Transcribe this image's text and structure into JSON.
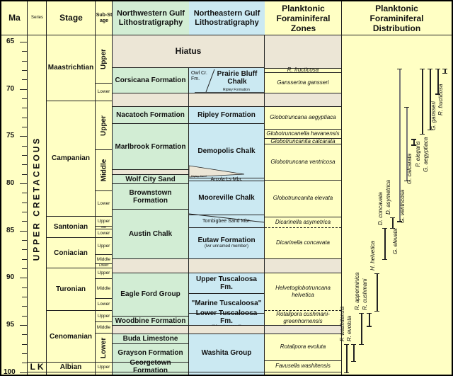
{
  "headers": {
    "ma": "Ma",
    "series": "Series",
    "stage": "Stage",
    "substage": "Sub-Stage",
    "nw": "Northwestern Gulf Lithostratigraphy",
    "ne": "Northeastern Gulf Lithostratigraphy",
    "zones": "Planktonic Foraminiferal Zones",
    "distribution": "Planktonic Foraminiferal Distribution"
  },
  "colors": {
    "yellow": "#ffffc4",
    "green": "#d2edd4",
    "blue": "#cbe9f2",
    "hiatus": "#ece6d6"
  },
  "ma_labels": [
    65,
    70,
    75,
    80,
    85,
    90,
    95,
    100
  ],
  "series": [
    {
      "label": "UPPER CRETACEOUS",
      "top": 65,
      "bottom": 99
    },
    {
      "label": "L K",
      "top": 99,
      "bottom": 100
    }
  ],
  "stages": [
    {
      "label": "Maastrichtian",
      "top": 65,
      "bottom": 71.3
    },
    {
      "label": "Campanian",
      "top": 71.3,
      "bottom": 83.5
    },
    {
      "label": "Santonian",
      "top": 83.5,
      "bottom": 85.8
    },
    {
      "label": "Coniacian",
      "top": 85.8,
      "bottom": 89
    },
    {
      "label": "Turonian",
      "top": 89,
      "bottom": 93.5
    },
    {
      "label": "Cenomanian",
      "top": 93.5,
      "bottom": 99
    },
    {
      "label": "Albian",
      "top": 99,
      "bottom": 100
    }
  ],
  "substages": [
    {
      "label": "Upper",
      "top": 65,
      "bottom": 69.4
    },
    {
      "label": "Lower",
      "top": 69.4,
      "bottom": 71.3
    },
    {
      "label": "Upper",
      "top": 71.3,
      "bottom": 76.5
    },
    {
      "label": "Middle",
      "top": 76.5,
      "bottom": 80.8
    },
    {
      "label": "Lower",
      "top": 80.8,
      "bottom": 83.5
    },
    {
      "label": "Upper",
      "top": 83.5,
      "bottom": 84.55
    },
    {
      "label": "Mid",
      "top": 84.55,
      "bottom": 84.9
    },
    {
      "label": "Lower",
      "top": 84.9,
      "bottom": 85.8
    },
    {
      "label": "Upper",
      "top": 85.8,
      "bottom": 87.6
    },
    {
      "label": "Middle",
      "top": 87.6,
      "bottom": 88.55
    },
    {
      "label": "Lower",
      "top": 88.55,
      "bottom": 89
    },
    {
      "label": "Upper",
      "top": 89,
      "bottom": 90.1
    },
    {
      "label": "Middle",
      "top": 90.1,
      "bottom": 92.2
    },
    {
      "label": "Lower",
      "top": 92.2,
      "bottom": 93.5
    },
    {
      "label": "Upper",
      "top": 93.5,
      "bottom": 94.7
    },
    {
      "label": "Middle",
      "top": 94.7,
      "bottom": 95.9
    },
    {
      "label": "Lower",
      "top": 95.9,
      "bottom": 99
    },
    {
      "label": "Upper",
      "top": 99,
      "bottom": 100
    }
  ],
  "nw": [
    {
      "label": "",
      "top": 65,
      "bottom": 67.8,
      "hiatus": true
    },
    {
      "label": "Corsicana Formation",
      "top": 67.8,
      "bottom": 70.5
    },
    {
      "label": "",
      "top": 70.5,
      "bottom": 71.9,
      "hiatus": true
    },
    {
      "label": "Nacatoch Formation",
      "top": 71.9,
      "bottom": 73.7
    },
    {
      "label": "Marlbrook Formation",
      "top": 73.7,
      "bottom": 78.6
    },
    {
      "label": "",
      "top": 78.6,
      "bottom": 79.1,
      "hiatus": true
    },
    {
      "label": "Wolf City Sand",
      "top": 79.1,
      "bottom": 80.1
    },
    {
      "label": "Brownstown Formation",
      "top": 80.1,
      "bottom": 82.8
    },
    {
      "label": "Austin Chalk",
      "top": 82.8,
      "bottom": 88
    },
    {
      "label": "",
      "top": 88,
      "bottom": 89.5,
      "hiatus": true
    },
    {
      "label": "Eagle Ford Group",
      "top": 89.5,
      "bottom": 94.1
    },
    {
      "label": "Woodbine Formation",
      "top": 94.1,
      "bottom": 95.1
    },
    {
      "label": "",
      "top": 95.1,
      "bottom": 96,
      "hiatus": true
    },
    {
      "label": "Buda Limestone",
      "top": 96,
      "bottom": 97
    },
    {
      "label": "Grayson Formation",
      "top": 97,
      "bottom": 99
    },
    {
      "label": "Georgetown Formation",
      "top": 99,
      "bottom": 100
    }
  ],
  "ne": [
    {
      "label": "Hiatus",
      "top": 65,
      "bottom": 67.8,
      "hiatus": true
    },
    {
      "label": "Prairie Bluff Chalk",
      "top": 67.8,
      "bottom": 70.5
    },
    {
      "label": "",
      "top": 70.5,
      "bottom": 71.9,
      "hiatus": true
    },
    {
      "label": "Ripley Formation",
      "top": 71.9,
      "bottom": 73.7
    },
    {
      "label": "Demopolis Chalk",
      "top": 73.7,
      "bottom": 79.5
    },
    {
      "label": "Arcola Ls Mbr.",
      "top": 79.5,
      "bottom": 79.8,
      "small": true
    },
    {
      "label": "Mooreville Chalk",
      "top": 79.8,
      "bottom": 83.4
    },
    {
      "label": "Tombigbee Sand Mbr.",
      "top": 83.4,
      "bottom": 84.7,
      "small": true
    },
    {
      "label": "Eutaw Formation",
      "sub": "(lwr unnamed member)",
      "top": 84.7,
      "bottom": 88
    },
    {
      "label": "",
      "top": 88,
      "bottom": 89.5,
      "hiatus": true
    },
    {
      "label": "Upper Tuscaloosa Fm.",
      "top": 89.5,
      "bottom": 91.7
    },
    {
      "label": "\"Marine Tuscaloosa\"",
      "top": 91.7,
      "bottom": 93.8
    },
    {
      "label": "Lower Tuscaloosa Fm.",
      "sub": "\"Massive sand\"",
      "top": 93.8,
      "bottom": 95.1
    },
    {
      "label": "",
      "top": 95.1,
      "bottom": 96,
      "hiatus": true
    },
    {
      "label": "Washita Group",
      "top": 96,
      "bottom": 100
    }
  ],
  "ne_notes": {
    "owl_creek": "Owl Cr. Fm.",
    "ripley_small": "Ripley Formation",
    "arcola_small": "Ripley Sand"
  },
  "zones": [
    {
      "label": "",
      "top": 65,
      "bottom": 67.85,
      "hiatus": true
    },
    {
      "label": "R. fructicosa",
      "top": 67.85,
      "bottom": 68.3
    },
    {
      "label": "Gansserina gansseri",
      "top": 68.3,
      "bottom": 70.5
    },
    {
      "label": "",
      "top": 70.5,
      "bottom": 71.9,
      "hiatus": true
    },
    {
      "label": "Globotruncana aegyptiaca",
      "top": 71.9,
      "bottom": 74.3
    },
    {
      "label": "Globotruncanella havanensis",
      "top": 74.3,
      "bottom": 75.3
    },
    {
      "label": "Globotruncanita calcarata",
      "top": 75.3,
      "bottom": 75.9
    },
    {
      "label": "Globotruncana ventricosa",
      "top": 75.9,
      "bottom": 79.7
    },
    {
      "label": "Globotruncanita elevata",
      "top": 79.7,
      "bottom": 83.6
    },
    {
      "label": "Dicarinella asymetrica",
      "top": 83.6,
      "bottom": 84.7,
      "dashed": true
    },
    {
      "label": "Dicarinella concavata",
      "top": 84.7,
      "bottom": 88
    },
    {
      "label": "",
      "top": 88,
      "bottom": 89.5,
      "hiatus": true
    },
    {
      "label": "Helvetoglobotruncana helvetica",
      "top": 89.5,
      "bottom": 93.5,
      "dashed": true
    },
    {
      "label": "Rotalipora cushmani-greenhornensis",
      "top": 93.5,
      "bottom": 95.1
    },
    {
      "label": "",
      "top": 95.1,
      "bottom": 96,
      "hiatus": true
    },
    {
      "label": "Rotalipora evoluta",
      "top": 96,
      "bottom": 98.8
    },
    {
      "label": "Favusella washitensis",
      "top": 98.8,
      "bottom": 100
    }
  ],
  "species": [
    {
      "label": "F. washitensis",
      "top": 97,
      "bottom": 100
    },
    {
      "label": "R. evoluta",
      "top": 97,
      "bottom": 98.8
    },
    {
      "label": "R. appenninica",
      "top": 93.7,
      "bottom": 97
    },
    {
      "label": "R. cushmani",
      "top": 93.7,
      "bottom": 95.1
    },
    {
      "label": "H. helvetica",
      "top": 89.5,
      "bottom": 93.5
    },
    {
      "label": "D. concavata",
      "top": 84.7,
      "bottom": 88
    },
    {
      "label": "D. asymetrica",
      "top": 83.6,
      "bottom": 84.7
    },
    {
      "label": "G. elevata",
      "top": 67.85,
      "bottom": 84
    },
    {
      "label": "G. ventricosa",
      "top": 71.9,
      "bottom": 79.7
    },
    {
      "label": "G. calcarata",
      "top": 75.3,
      "bottom": 75.9
    },
    {
      "label": "P. elegans",
      "top": 67.85,
      "bottom": 74.75
    },
    {
      "label": "G. aegyptiaca",
      "top": 67.85,
      "bottom": 74.3
    },
    {
      "label": "G. gansseri",
      "top": 67.85,
      "bottom": 70.5
    },
    {
      "label": "R. fructicosa",
      "top": 67.85,
      "bottom": 68.3
    }
  ]
}
